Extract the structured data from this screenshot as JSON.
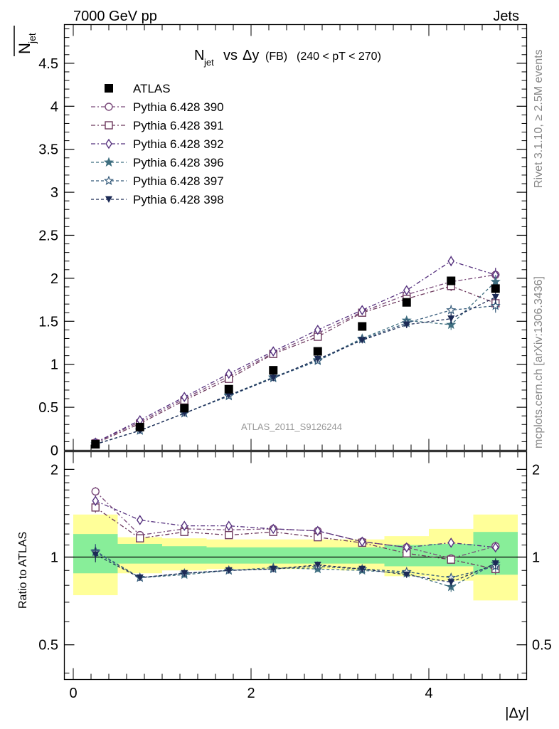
{
  "header": {
    "left": "7000 GeV pp",
    "right": "Jets"
  },
  "side_labels": {
    "rivet": "Rivet 3.1.10, ≥ 2.5M events",
    "mcplots": "mcplots.cern.ch [arXiv:1306.3436]"
  },
  "chart_data": [
    {
      "type": "scatter",
      "title_main": "N",
      "title_main_sub": "jet",
      "title_vs": "vs",
      "title_delta": "Δy",
      "title_fb": "(FB)",
      "title_range": "(240 < pT < 270)",
      "watermark": "ATLAS_2011_S9126244",
      "ylabel_num": "N",
      "ylabel_sub": "jet",
      "ylim": [
        0,
        4.95
      ],
      "yticks": [
        "0",
        "0.5",
        "1",
        "1.5",
        "2",
        "2.5",
        "3",
        "3.5",
        "4",
        "4.5"
      ],
      "x": [
        0.25,
        0.75,
        1.25,
        1.75,
        2.25,
        2.75,
        3.25,
        3.75,
        4.25,
        4.75
      ],
      "data_series": {
        "name": "ATLAS",
        "values": [
          0.07,
          0.27,
          0.49,
          0.71,
          0.93,
          1.15,
          1.44,
          1.72,
          1.97,
          1.88
        ]
      },
      "series": [
        {
          "name": "Pythia 6.428 390",
          "color": "#7a4a7a",
          "marker": "circle",
          "values": [
            0.09,
            0.33,
            0.6,
            0.86,
            1.13,
            1.36,
            1.61,
            1.81,
            1.96,
            2.04
          ],
          "errors": [
            0.01,
            0.01,
            0.01,
            0.02,
            0.02,
            0.03,
            0.03,
            0.04,
            0.06,
            0.08
          ]
        },
        {
          "name": "Pythia 6.428 391",
          "color": "#6e3a5e",
          "marker": "square",
          "values": [
            0.08,
            0.31,
            0.58,
            0.83,
            1.12,
            1.32,
            1.6,
            1.76,
            1.91,
            1.71
          ],
          "errors": [
            0.01,
            0.01,
            0.01,
            0.02,
            0.02,
            0.03,
            0.03,
            0.04,
            0.06,
            0.08
          ]
        },
        {
          "name": "Pythia 6.428 392",
          "color": "#55307e",
          "marker": "diamond",
          "values": [
            0.09,
            0.35,
            0.62,
            0.89,
            1.15,
            1.4,
            1.63,
            1.86,
            2.2,
            2.04
          ],
          "errors": [
            0.01,
            0.01,
            0.01,
            0.02,
            0.02,
            0.03,
            0.03,
            0.04,
            0.06,
            0.08
          ]
        },
        {
          "name": "Pythia 6.428 396",
          "color": "#3f6f80",
          "marker": "star-filled",
          "values": [
            0.07,
            0.23,
            0.43,
            0.64,
            0.85,
            1.05,
            1.3,
            1.51,
            1.46,
            1.96
          ],
          "errors": [
            0.01,
            0.01,
            0.01,
            0.02,
            0.02,
            0.03,
            0.03,
            0.04,
            0.06,
            0.08
          ]
        },
        {
          "name": "Pythia 6.428 397",
          "color": "#345a7a",
          "marker": "star-open",
          "values": [
            0.07,
            0.23,
            0.43,
            0.63,
            0.84,
            1.04,
            1.29,
            1.48,
            1.63,
            1.68
          ],
          "errors": [
            0.01,
            0.01,
            0.01,
            0.02,
            0.02,
            0.03,
            0.03,
            0.04,
            0.06,
            0.08
          ]
        },
        {
          "name": "Pythia 6.428 398",
          "color": "#1c2a55",
          "marker": "triangle-down",
          "values": [
            0.07,
            0.23,
            0.43,
            0.64,
            0.84,
            1.06,
            1.28,
            1.46,
            1.53,
            1.78
          ],
          "errors": [
            0.01,
            0.01,
            0.01,
            0.02,
            0.02,
            0.03,
            0.03,
            0.04,
            0.06,
            0.08
          ]
        }
      ]
    },
    {
      "type": "scatter",
      "ylabel": "Ratio to ATLAS",
      "xlabel": "|Δy|",
      "xlim": [
        -0.1,
        5.1
      ],
      "ylim": [
        0.38,
        2.3
      ],
      "log_y": true,
      "yticks": [
        "0.5",
        "1",
        "2"
      ],
      "xticks": [
        "0",
        "2",
        "4"
      ],
      "bin_edges": [
        0,
        0.5,
        1.0,
        1.5,
        2.0,
        2.5,
        3.0,
        3.5,
        4.0,
        4.5,
        5.0
      ],
      "band_inner": [
        [
          0.88,
          1.2
        ],
        [
          0.95,
          1.11
        ],
        [
          0.95,
          1.09
        ],
        [
          0.95,
          1.08
        ],
        [
          0.95,
          1.08
        ],
        [
          0.95,
          1.08
        ],
        [
          0.95,
          1.08
        ],
        [
          0.93,
          1.1
        ],
        [
          0.93,
          1.11
        ],
        [
          0.87,
          1.22
        ]
      ],
      "band_outer": [
        [
          0.74,
          1.4
        ],
        [
          0.88,
          1.17
        ],
        [
          0.9,
          1.16
        ],
        [
          0.91,
          1.15
        ],
        [
          0.91,
          1.15
        ],
        [
          0.91,
          1.15
        ],
        [
          0.9,
          1.15
        ],
        [
          0.86,
          1.18
        ],
        [
          0.83,
          1.25
        ],
        [
          0.71,
          1.4
        ]
      ],
      "series": [
        {
          "name": "Pythia 6.428 390",
          "values": [
            1.68,
            1.19,
            1.25,
            1.24,
            1.25,
            1.23,
            1.13,
            1.08,
            0.99,
            1.09
          ],
          "errors": [
            0.06,
            0.02,
            0.02,
            0.02,
            0.02,
            0.02,
            0.02,
            0.02,
            0.03,
            0.04
          ]
        },
        {
          "name": "Pythia 6.428 391",
          "values": [
            1.48,
            1.16,
            1.22,
            1.19,
            1.22,
            1.17,
            1.12,
            1.03,
            0.98,
            0.91
          ],
          "errors": [
            0.06,
            0.02,
            0.02,
            0.02,
            0.02,
            0.02,
            0.02,
            0.02,
            0.03,
            0.04
          ]
        },
        {
          "name": "Pythia 6.428 392",
          "values": [
            1.56,
            1.34,
            1.28,
            1.28,
            1.25,
            1.23,
            1.13,
            1.08,
            1.12,
            1.08
          ],
          "errors": [
            0.06,
            0.02,
            0.02,
            0.02,
            0.02,
            0.02,
            0.02,
            0.02,
            0.03,
            0.04
          ]
        },
        {
          "name": "Pythia 6.428 396",
          "values": [
            1.05,
            0.85,
            0.87,
            0.9,
            0.92,
            0.91,
            0.9,
            0.88,
            0.79,
            0.95
          ],
          "errors": [
            0.06,
            0.02,
            0.02,
            0.02,
            0.02,
            0.02,
            0.02,
            0.02,
            0.03,
            0.04
          ]
        },
        {
          "name": "Pythia 6.428 397",
          "values": [
            1.04,
            0.85,
            0.88,
            0.9,
            0.91,
            0.93,
            0.91,
            0.89,
            0.85,
            0.93
          ],
          "errors": [
            0.06,
            0.02,
            0.02,
            0.02,
            0.02,
            0.02,
            0.02,
            0.02,
            0.03,
            0.04
          ]
        },
        {
          "name": "Pythia 6.428 398",
          "values": [
            1.02,
            0.85,
            0.88,
            0.9,
            0.91,
            0.94,
            0.91,
            0.87,
            0.82,
            0.95
          ],
          "errors": [
            0.06,
            0.02,
            0.02,
            0.02,
            0.02,
            0.02,
            0.02,
            0.02,
            0.03,
            0.04
          ]
        }
      ]
    }
  ]
}
